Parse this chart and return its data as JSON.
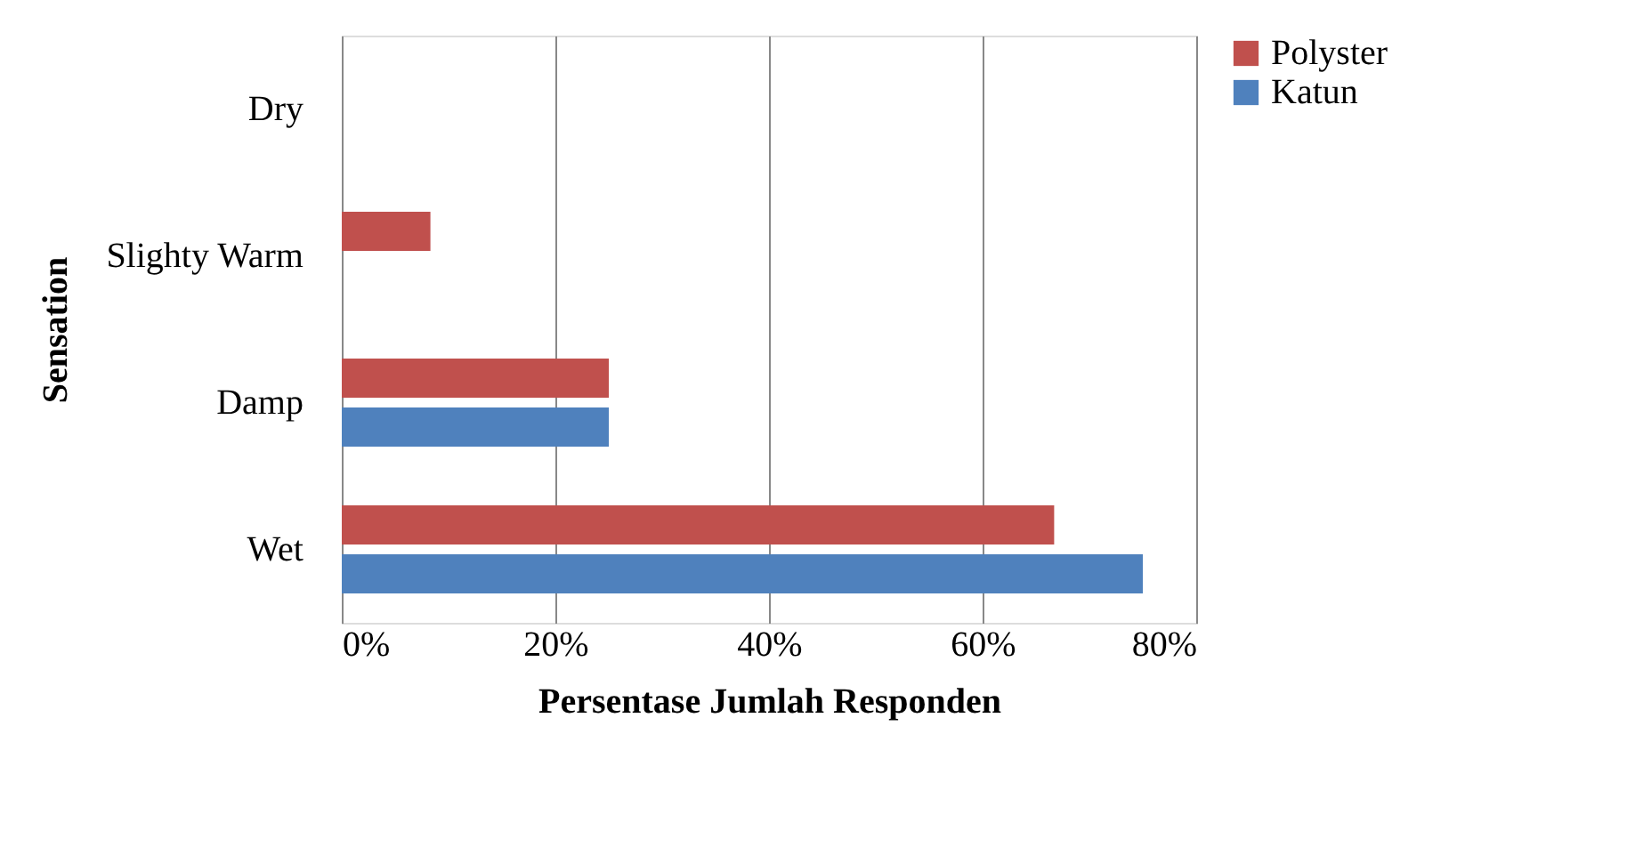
{
  "chart_data": {
    "type": "bar",
    "orientation": "horizontal",
    "xlabel": "Persentase Jumlah Responden",
    "ylabel": "Sensation",
    "categories": [
      "Dry",
      "Slighty Warm",
      "Damp",
      "Wet"
    ],
    "series": [
      {
        "name": "Polyster",
        "color": "#c0504d",
        "values": [
          null,
          8.3,
          25,
          66.7
        ]
      },
      {
        "name": "Katun",
        "color": "#4f81bd",
        "values": [
          null,
          null,
          25,
          75
        ]
      }
    ],
    "xlim": [
      0,
      80
    ],
    "xticks": [
      {
        "value": 0,
        "label": "0%"
      },
      {
        "value": 20,
        "label": "20%"
      },
      {
        "value": 40,
        "label": "40%"
      },
      {
        "value": 60,
        "label": "60%"
      },
      {
        "value": 80,
        "label": "80%"
      }
    ],
    "grid": "x",
    "legend": "right"
  }
}
